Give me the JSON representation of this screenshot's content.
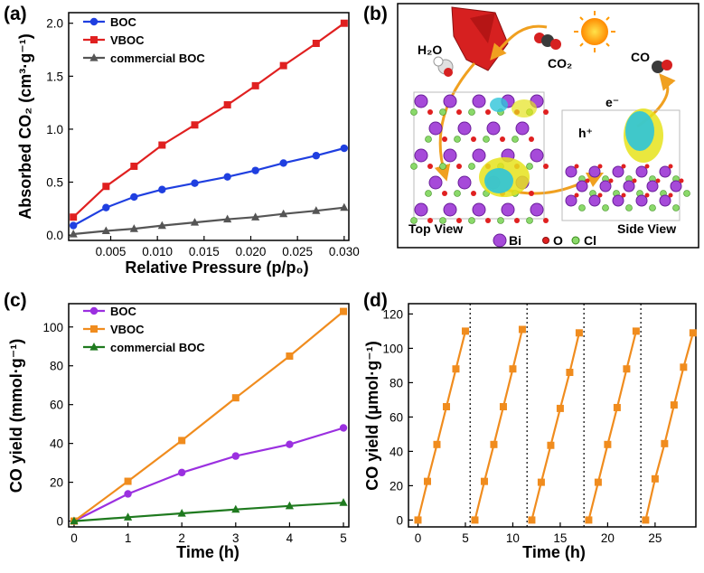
{
  "panels": {
    "a": "(a)",
    "b": "(b)",
    "c": "(c)",
    "d": "(d)"
  },
  "colors": {
    "BOC_a": "#1f3fe0",
    "VBOC_a": "#e02020",
    "commercial_a": "#555555",
    "BOC_c": "#9b30e0",
    "VBOC_c": "#f08c1e",
    "commercial_c": "#1f7a1f",
    "cycle_d": "#f08c1e"
  },
  "schematic": {
    "h2o": "H₂O",
    "co2": "CO₂",
    "co": "CO",
    "electron": "e⁻",
    "hole": "h⁺",
    "top_view": "Top View",
    "side_view": "Side View",
    "legend_bi": "Bi",
    "legend_o": "O",
    "legend_cl": "Cl"
  },
  "chart_data": [
    {
      "panel": "a",
      "type": "line",
      "xlabel": "Relative Pressure (p/p₀)",
      "ylabel": "Absorbed CO₂ (cm³·g⁻¹)",
      "xlim": [
        0.0005,
        0.0305
      ],
      "ylim": [
        -0.05,
        2.1
      ],
      "xticks": [
        0.005,
        0.01,
        0.015,
        0.02,
        0.025,
        0.03
      ],
      "xtick_labels": [
        "0.005",
        "0.010",
        "0.015",
        "0.020",
        "0.025",
        "0.030"
      ],
      "yticks": [
        0.0,
        0.5,
        1.0,
        1.5,
        2.0
      ],
      "ytick_labels": [
        "0.0",
        "0.5",
        "1.0",
        "1.5",
        "2.0"
      ],
      "legend_position": "top-left",
      "series": [
        {
          "name": "BOC",
          "marker": "circle",
          "x": [
            0.001,
            0.0045,
            0.0075,
            0.0105,
            0.014,
            0.0175,
            0.0205,
            0.0235,
            0.027,
            0.03
          ],
          "y": [
            0.09,
            0.26,
            0.36,
            0.43,
            0.49,
            0.55,
            0.61,
            0.68,
            0.75,
            0.82
          ]
        },
        {
          "name": "VBOC",
          "marker": "square",
          "x": [
            0.001,
            0.0045,
            0.0075,
            0.0105,
            0.014,
            0.0175,
            0.0205,
            0.0235,
            0.027,
            0.03
          ],
          "y": [
            0.17,
            0.46,
            0.65,
            0.85,
            1.04,
            1.23,
            1.41,
            1.6,
            1.81,
            2.0
          ]
        },
        {
          "name": "commercial BOC",
          "marker": "triangle",
          "x": [
            0.001,
            0.0045,
            0.0075,
            0.0105,
            0.014,
            0.0175,
            0.0205,
            0.0235,
            0.027,
            0.03
          ],
          "y": [
            0.01,
            0.04,
            0.06,
            0.09,
            0.12,
            0.15,
            0.17,
            0.2,
            0.23,
            0.26
          ]
        }
      ]
    },
    {
      "panel": "c",
      "type": "line",
      "xlabel": "Time (h)",
      "ylabel": "CO yield (mmol·g⁻¹)",
      "xlim": [
        -0.1,
        5.1
      ],
      "ylim": [
        -3,
        112
      ],
      "xticks": [
        0,
        1,
        2,
        3,
        4,
        5
      ],
      "xtick_labels": [
        "0",
        "1",
        "2",
        "3",
        "4",
        "5"
      ],
      "yticks": [
        0,
        20,
        40,
        60,
        80,
        100
      ],
      "ytick_labels": [
        "0",
        "20",
        "40",
        "60",
        "80",
        "100"
      ],
      "legend_position": "top-left",
      "series": [
        {
          "name": "BOC",
          "marker": "circle",
          "x": [
            0,
            1,
            2,
            3,
            4,
            5
          ],
          "y": [
            0,
            14,
            25,
            33.5,
            39.5,
            48
          ]
        },
        {
          "name": "VBOC",
          "marker": "square",
          "x": [
            0,
            1,
            2,
            3,
            4,
            5
          ],
          "y": [
            0,
            20.5,
            41.5,
            63.5,
            85,
            108
          ]
        },
        {
          "name": "commercial BOC",
          "marker": "triangle",
          "x": [
            0,
            1,
            2,
            3,
            4,
            5
          ],
          "y": [
            0,
            2,
            4,
            6,
            7.8,
            9.5
          ]
        }
      ]
    },
    {
      "panel": "d",
      "type": "line",
      "xlabel": "Time (h)",
      "ylabel": "CO yield (μmol·g⁻¹)",
      "xlim": [
        -1,
        29.3
      ],
      "ylim": [
        -4,
        126
      ],
      "xticks": [
        0,
        5,
        10,
        15,
        20,
        25
      ],
      "xtick_labels": [
        "0",
        "5",
        "10",
        "15",
        "20",
        "25"
      ],
      "yticks": [
        0,
        20,
        40,
        60,
        80,
        100,
        120
      ],
      "ytick_labels": [
        "0",
        "20",
        "40",
        "60",
        "80",
        "100",
        "120"
      ],
      "cycle_dividers_x": [
        5.5,
        11.5,
        17.5,
        23.5
      ],
      "series": [
        {
          "marker": "square",
          "cycles": [
            {
              "x": [
                0,
                1,
                2,
                3,
                4,
                5
              ],
              "y": [
                0,
                22.5,
                44,
                66,
                88,
                110
              ]
            },
            {
              "x": [
                6,
                7,
                8,
                9,
                10,
                11
              ],
              "y": [
                0,
                22.5,
                44,
                66,
                88,
                111
              ]
            },
            {
              "x": [
                12,
                13,
                14,
                15,
                16,
                17
              ],
              "y": [
                0,
                22,
                43.5,
                65,
                86,
                109
              ]
            },
            {
              "x": [
                18,
                19,
                20,
                21,
                22,
                23
              ],
              "y": [
                0,
                22,
                44,
                65.5,
                88,
                110
              ]
            },
            {
              "x": [
                24,
                25,
                26,
                27,
                28,
                29
              ],
              "y": [
                0,
                24,
                44.5,
                67,
                89,
                109
              ]
            }
          ]
        }
      ]
    }
  ]
}
